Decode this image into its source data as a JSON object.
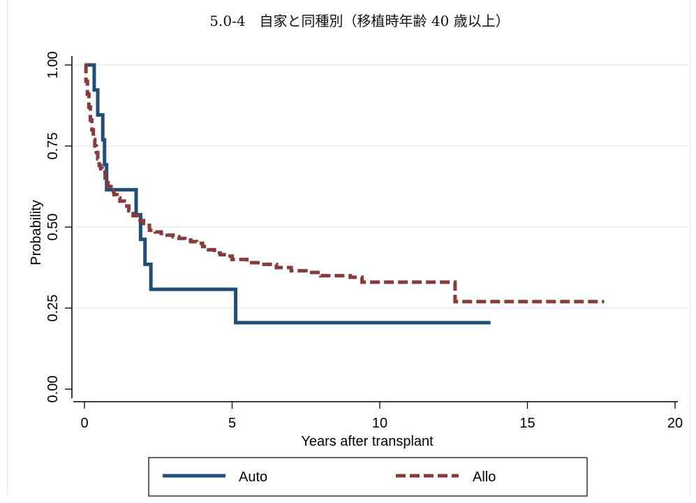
{
  "chart_data": {
    "type": "line",
    "title": "5.0-4　自家と同種別（移植時年齢 40 歳以上）",
    "xlabel": "Years after transplant",
    "ylabel": "Probability",
    "xlim": [
      0,
      20
    ],
    "ylim": [
      0,
      1
    ],
    "xticks": [
      0,
      5,
      10,
      15,
      20
    ],
    "yticks": [
      0,
      0.25,
      0.5,
      0.75,
      1.0
    ],
    "xtick_labels": [
      "0",
      "5",
      "10",
      "15",
      "20"
    ],
    "ytick_labels": [
      "0.00",
      "0.25",
      "0.50",
      "0.75",
      "1.00"
    ],
    "grid": "horizontal",
    "legend_position": "bottom",
    "series": [
      {
        "name": "Auto",
        "color": "#1f4e79",
        "style": "solid",
        "step": true,
        "x": [
          0.1,
          0.33,
          0.45,
          0.62,
          0.68,
          0.75,
          1.75,
          1.9,
          2.05,
          2.25,
          5.12,
          13.75
        ],
        "y": [
          1.0,
          0.923,
          0.846,
          0.769,
          0.692,
          0.615,
          0.538,
          0.462,
          0.385,
          0.308,
          0.205,
          0.205
        ]
      },
      {
        "name": "Allo",
        "color": "#8b3a3a",
        "style": "dashed",
        "step": true,
        "x": [
          0.0,
          0.05,
          0.1,
          0.15,
          0.2,
          0.25,
          0.3,
          0.35,
          0.4,
          0.45,
          0.5,
          0.55,
          0.6,
          0.7,
          0.8,
          0.9,
          1.0,
          1.1,
          1.2,
          1.35,
          1.5,
          1.65,
          1.8,
          2.0,
          2.2,
          2.4,
          2.6,
          2.8,
          3.0,
          3.2,
          3.4,
          3.6,
          3.8,
          4.0,
          4.2,
          4.4,
          4.6,
          4.8,
          5.0,
          5.5,
          6.0,
          6.5,
          7.0,
          7.5,
          8.0,
          9.0,
          9.4,
          10.0,
          11.0,
          12.0,
          12.55,
          13.0,
          15.0,
          17.6
        ],
        "y": [
          1.0,
          0.95,
          0.91,
          0.87,
          0.83,
          0.8,
          0.77,
          0.75,
          0.73,
          0.71,
          0.69,
          0.68,
          0.67,
          0.645,
          0.625,
          0.61,
          0.6,
          0.59,
          0.58,
          0.565,
          0.55,
          0.535,
          0.52,
          0.505,
          0.49,
          0.485,
          0.48,
          0.475,
          0.47,
          0.465,
          0.46,
          0.455,
          0.45,
          0.44,
          0.43,
          0.42,
          0.415,
          0.41,
          0.4,
          0.39,
          0.385,
          0.375,
          0.365,
          0.36,
          0.35,
          0.345,
          0.33,
          0.33,
          0.33,
          0.33,
          0.27,
          0.27,
          0.27,
          0.27
        ]
      }
    ]
  }
}
